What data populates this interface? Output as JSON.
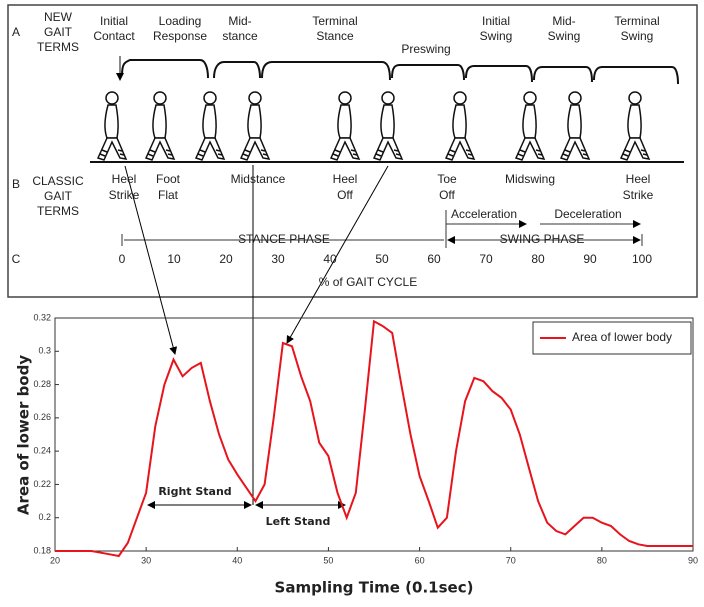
{
  "diagram": {
    "row_labels": [
      "A",
      "B",
      "C"
    ],
    "new_terms_heading": [
      "NEW",
      "GAIT",
      "TERMS"
    ],
    "new_terms": [
      [
        "Initial",
        "Contact"
      ],
      [
        "Loading",
        "Response"
      ],
      [
        "Mid-",
        "stance"
      ],
      [
        "Terminal",
        "Stance"
      ],
      [
        "Preswing"
      ],
      [
        "Initial",
        "Swing"
      ],
      [
        "Mid-",
        "Swing"
      ],
      [
        "Terminal",
        "Swing"
      ]
    ],
    "classic_terms_heading": [
      "CLASSIC",
      "GAIT",
      "TERMS"
    ],
    "classic_terms": [
      [
        "Heel",
        "Strike"
      ],
      [
        "Foot",
        "Flat"
      ],
      [
        "Midstance"
      ],
      [
        "Heel",
        "Off"
      ],
      [
        "Toe",
        "Off"
      ],
      [
        "Midswing"
      ],
      [
        "Heel",
        "Strike"
      ]
    ],
    "acceleration": "Acceleration",
    "deceleration": "Deceleration",
    "stance_phase": "STANCE PHASE",
    "swing_phase": "SWING PHASE",
    "gait_cycle_ticks": [
      0,
      10,
      20,
      30,
      40,
      50,
      60,
      70,
      80,
      90,
      100
    ],
    "gait_cycle_label": "% of GAIT CYCLE"
  },
  "chart_data": {
    "type": "line",
    "xlabel": "Sampling Time (0.1sec)",
    "ylabel": "Area of  lower  body",
    "x": [
      20,
      24,
      26,
      27,
      28,
      29,
      30,
      31,
      32,
      33,
      34,
      35,
      36,
      37,
      38,
      39,
      40,
      41,
      42,
      43,
      44,
      45,
      46,
      47,
      48,
      49,
      50,
      51,
      52,
      53,
      54,
      55,
      56,
      57,
      58,
      59,
      60,
      61,
      62,
      63,
      64,
      65,
      66,
      67,
      68,
      69,
      70,
      71,
      72,
      73,
      74,
      75,
      76,
      77,
      78,
      79,
      80,
      81,
      82,
      83,
      84,
      85,
      86,
      87,
      88,
      89,
      90
    ],
    "series": [
      {
        "name": "Area of lower body",
        "color": "#e8141c",
        "values": [
          0.18,
          0.18,
          0.178,
          0.177,
          0.185,
          0.2,
          0.215,
          0.255,
          0.28,
          0.295,
          0.285,
          0.29,
          0.293,
          0.27,
          0.25,
          0.235,
          0.226,
          0.218,
          0.21,
          0.22,
          0.26,
          0.305,
          0.303,
          0.285,
          0.27,
          0.245,
          0.237,
          0.215,
          0.2,
          0.215,
          0.265,
          0.318,
          0.315,
          0.311,
          0.28,
          0.25,
          0.225,
          0.21,
          0.194,
          0.2,
          0.24,
          0.27,
          0.284,
          0.282,
          0.276,
          0.272,
          0.265,
          0.25,
          0.23,
          0.21,
          0.197,
          0.192,
          0.19,
          0.195,
          0.2,
          0.2,
          0.197,
          0.195,
          0.19,
          0.186,
          0.184,
          0.183,
          0.183,
          0.183,
          0.183,
          0.183,
          0.183
        ]
      }
    ],
    "xlim": [
      20,
      90
    ],
    "ylim": [
      0.18,
      0.32
    ],
    "xticks": [
      20,
      30,
      40,
      50,
      60,
      70,
      80,
      90
    ],
    "yticks": [
      0.18,
      0.2,
      0.22,
      0.24,
      0.26,
      0.28,
      0.3,
      0.32
    ],
    "annotations": [
      "Right Stand",
      "Left Stand"
    ],
    "legend": "upper right",
    "grid": false
  }
}
